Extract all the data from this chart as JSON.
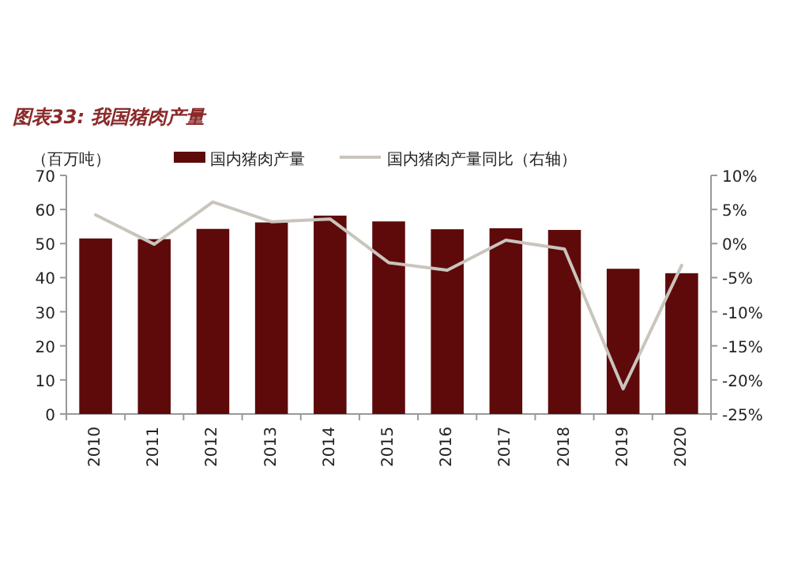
{
  "chart_data": {
    "type": "bar",
    "title": "图表33: 我国猪肉产量",
    "ylabel": "（百万吨）",
    "categories": [
      "2010",
      "2011",
      "2012",
      "2013",
      "2014",
      "2015",
      "2016",
      "2017",
      "2018",
      "2019",
      "2020"
    ],
    "series": [
      {
        "name": "国内猪肉产量",
        "color": "#5e0a0a",
        "values": [
          51.5,
          51.3,
          54.3,
          56.2,
          58.2,
          56.5,
          54.2,
          54.5,
          54.0,
          42.6,
          41.3
        ]
      },
      {
        "name": "国内猪肉产量同比（右轴）",
        "type": "line",
        "axis": "y2",
        "color": "#c9c5bd",
        "values": [
          4.2,
          -0.1,
          6.1,
          3.2,
          3.6,
          -2.8,
          -3.9,
          0.5,
          -0.8,
          -21.3,
          -3.2
        ]
      }
    ],
    "ylim": [
      0,
      70
    ],
    "yticks": [
      0,
      10,
      20,
      30,
      40,
      50,
      60,
      70
    ],
    "y2lim": [
      -25,
      10
    ],
    "y2ticks": [
      {
        "value": -25,
        "label": "-25%"
      },
      {
        "value": -20,
        "label": "-20%"
      },
      {
        "value": -15,
        "label": "-15%"
      },
      {
        "value": -10,
        "label": "-10%"
      },
      {
        "value": -5,
        "label": "-5%"
      },
      {
        "value": 0,
        "label": "0%"
      },
      {
        "value": 5,
        "label": "5%"
      },
      {
        "value": 10,
        "label": "10%"
      }
    ],
    "legend": "top",
    "grid": false
  }
}
